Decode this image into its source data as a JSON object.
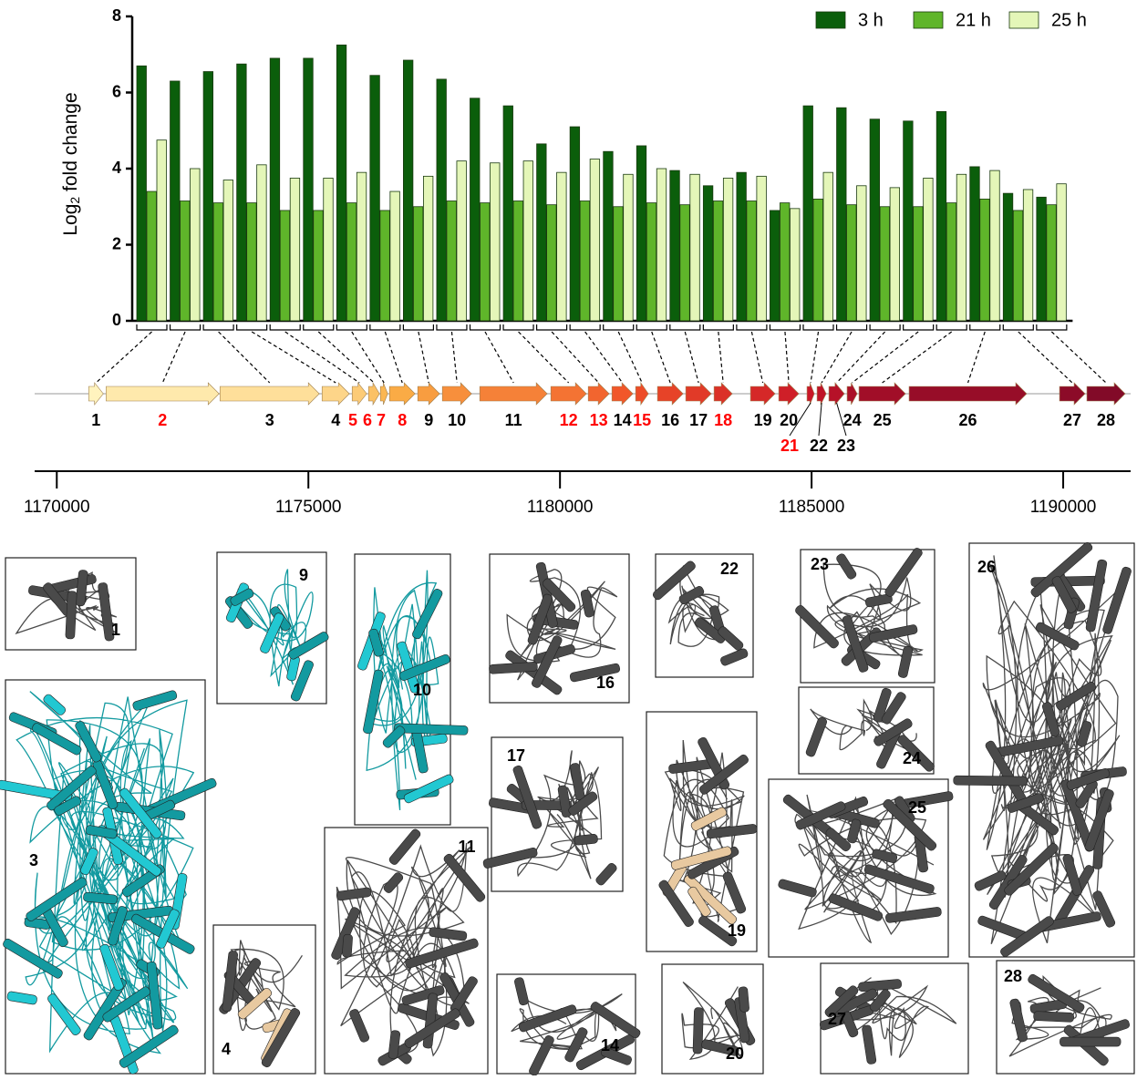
{
  "chart_data": {
    "type": "bar",
    "ylabel": [
      "Log",
      "2",
      " fold change"
    ],
    "ylim": [
      0,
      8
    ],
    "yticks": [
      0,
      2,
      4,
      6,
      8
    ],
    "legend": "top-right",
    "categories": [
      "1",
      "2",
      "3",
      "4",
      "5",
      "6",
      "7",
      "8",
      "9",
      "10",
      "11",
      "12",
      "13",
      "14",
      "15",
      "16",
      "17",
      "18",
      "19",
      "20",
      "21",
      "22",
      "23",
      "24",
      "25",
      "26",
      "27",
      "28"
    ],
    "series": [
      {
        "name": "3 h",
        "color": "#0b5e0b",
        "values": [
          6.7,
          6.3,
          6.55,
          6.75,
          6.9,
          6.9,
          7.25,
          6.45,
          6.85,
          6.35,
          5.85,
          5.65,
          4.65,
          5.1,
          4.45,
          4.6,
          3.95,
          3.55,
          3.9,
          2.9,
          5.65,
          5.6,
          5.3,
          5.25,
          5.5,
          4.05,
          3.35,
          3.25
        ]
      },
      {
        "name": "21 h",
        "color": "#5fb52a",
        "values": [
          3.4,
          3.15,
          3.1,
          3.1,
          2.9,
          2.9,
          3.1,
          2.9,
          3.0,
          3.15,
          3.1,
          3.15,
          3.05,
          3.15,
          3.0,
          3.1,
          3.05,
          3.15,
          3.15,
          3.1,
          3.2,
          3.05,
          3.0,
          3.0,
          3.1,
          3.2,
          2.9,
          3.05
        ]
      },
      {
        "name": "25 h",
        "color": "#e4f6b8",
        "values": [
          4.75,
          4.0,
          3.7,
          4.1,
          3.75,
          3.75,
          3.9,
          3.4,
          3.8,
          4.2,
          4.15,
          4.2,
          3.9,
          4.25,
          3.85,
          4.0,
          3.85,
          3.75,
          3.8,
          2.95,
          3.9,
          3.55,
          3.5,
          3.75,
          3.85,
          3.95,
          3.45,
          3.6
        ]
      }
    ],
    "genes": [
      {
        "start": 1170634,
        "end": 1170924,
        "label_color": "black"
      },
      {
        "start": 1170980,
        "end": 1173225,
        "label_color": "red"
      },
      {
        "start": 1173243,
        "end": 1175217,
        "label_color": "black"
      },
      {
        "start": 1175272,
        "end": 1175815,
        "label_color": "black"
      },
      {
        "start": 1175870,
        "end": 1176159,
        "label_color": "red"
      },
      {
        "start": 1176196,
        "end": 1176413,
        "label_color": "red"
      },
      {
        "start": 1176431,
        "end": 1176576,
        "label_color": "red"
      },
      {
        "start": 1176612,
        "end": 1177120,
        "label_color": "red"
      },
      {
        "start": 1177174,
        "end": 1177609,
        "label_color": "black"
      },
      {
        "start": 1177663,
        "end": 1178243,
        "label_color": "black"
      },
      {
        "start": 1178406,
        "end": 1179746,
        "label_color": "black"
      },
      {
        "start": 1179819,
        "end": 1180525,
        "label_color": "red"
      },
      {
        "start": 1180562,
        "end": 1180978,
        "label_color": "red"
      },
      {
        "start": 1181033,
        "end": 1181449,
        "label_color": "black"
      },
      {
        "start": 1181504,
        "end": 1181757,
        "label_color": "red"
      },
      {
        "start": 1181938,
        "end": 1182446,
        "label_color": "black"
      },
      {
        "start": 1182500,
        "end": 1183007,
        "label_color": "black"
      },
      {
        "start": 1183062,
        "end": 1183424,
        "label_color": "red"
      },
      {
        "start": 1183786,
        "end": 1184275,
        "label_color": "black"
      },
      {
        "start": 1184348,
        "end": 1184746,
        "label_color": "black"
      },
      {
        "start": 1184909,
        "end": 1185054,
        "label_color": "red"
      },
      {
        "start": 1185109,
        "end": 1185290,
        "label_color": "black"
      },
      {
        "start": 1185344,
        "end": 1185652,
        "label_color": "black"
      },
      {
        "start": 1185706,
        "end": 1185906,
        "label_color": "black"
      },
      {
        "start": 1185942,
        "end": 1186866,
        "label_color": "black"
      },
      {
        "start": 1186938,
        "end": 1189275,
        "label_color": "black"
      },
      {
        "start": 1189928,
        "end": 1190435,
        "label_color": "black"
      },
      {
        "start": 1190471,
        "end": 1191232,
        "label_color": "black"
      }
    ],
    "xlim": [
      1169560,
      1191340
    ],
    "xticks": [
      1170000,
      1175000,
      1180000,
      1185000,
      1190000
    ],
    "structures": [
      "1",
      "3",
      "9",
      "10",
      "4",
      "11",
      "16",
      "17",
      "14",
      "22",
      "19",
      "20",
      "23",
      "24",
      "25",
      "26",
      "27",
      "28"
    ]
  }
}
